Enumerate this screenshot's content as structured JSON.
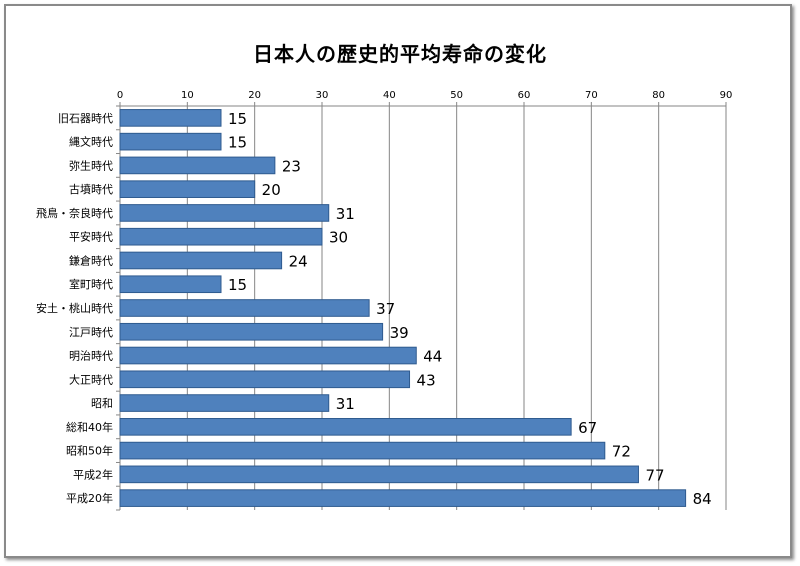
{
  "chart_data": {
    "type": "bar",
    "orientation": "horizontal",
    "title": "日本人の歴史的平均寿命の変化",
    "categories": [
      "旧石器時代",
      "縄文時代",
      "弥生時代",
      "古墳時代",
      "飛鳥・奈良時代",
      "平安時代",
      "鎌倉時代",
      "室町時代",
      "安土・桃山時代",
      "江戸時代",
      "明治時代",
      "大正時代",
      "昭和",
      "総和40年",
      "昭和50年",
      "平成2年",
      "平成20年"
    ],
    "values": [
      15,
      15,
      23,
      20,
      31,
      30,
      24,
      15,
      37,
      39,
      44,
      43,
      31,
      67,
      72,
      77,
      84
    ],
    "xlim": [
      0,
      90
    ],
    "xticks": [
      0,
      10,
      20,
      30,
      40,
      50,
      60,
      70,
      80,
      90
    ],
    "x_axis_position": "top",
    "grid": true,
    "legend": "none",
    "bar_color": "#4f81bd",
    "bar_edge_color": "#2f5b8f",
    "grid_color": "#868686"
  }
}
